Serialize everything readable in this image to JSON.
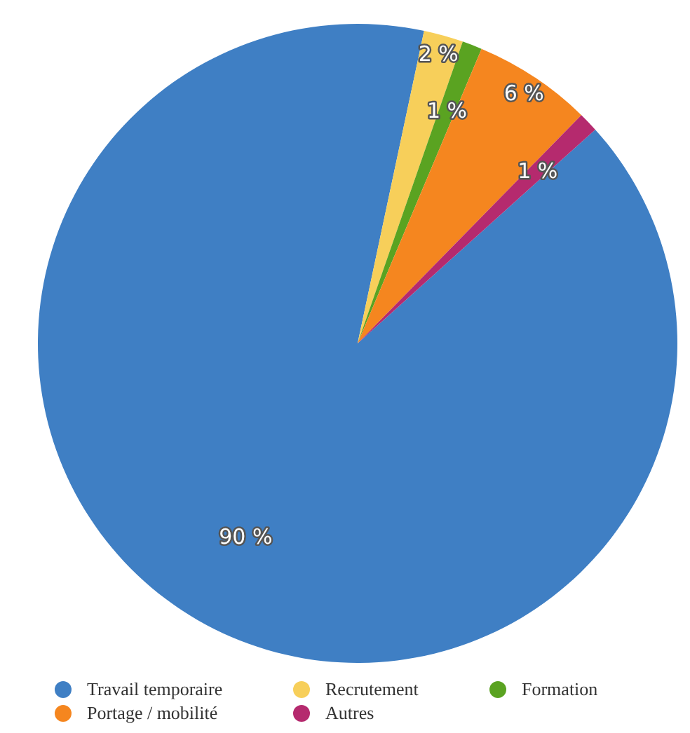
{
  "chart_data": {
    "type": "pie",
    "categories": [
      "Travail temporaire",
      "Recrutement",
      "Formation",
      "Portage / mobilité",
      "Autres"
    ],
    "values": [
      90,
      2,
      1,
      6,
      1
    ],
    "value_labels": [
      "90 %",
      "2 %",
      "1 %",
      "6 %",
      "1 %"
    ],
    "colors": [
      "#3f7fc4",
      "#f7cf5a",
      "#5aa321",
      "#f5861f",
      "#b52a6e"
    ],
    "legend": "bottom"
  }
}
